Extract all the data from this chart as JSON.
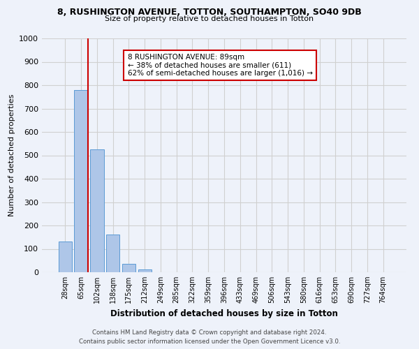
{
  "title1": "8, RUSHINGTON AVENUE, TOTTON, SOUTHAMPTON, SO40 9DB",
  "title2": "Size of property relative to detached houses in Totton",
  "xlabel": "Distribution of detached houses by size in Totton",
  "ylabel": "Number of detached properties",
  "footer1": "Contains HM Land Registry data © Crown copyright and database right 2024.",
  "footer2": "Contains public sector information licensed under the Open Government Licence v3.0.",
  "bar_labels": [
    "28sqm",
    "65sqm",
    "102sqm",
    "138sqm",
    "175sqm",
    "212sqm",
    "249sqm",
    "285sqm",
    "322sqm",
    "359sqm",
    "396sqm",
    "433sqm",
    "469sqm",
    "506sqm",
    "543sqm",
    "580sqm",
    "616sqm",
    "653sqm",
    "690sqm",
    "727sqm",
    "764sqm"
  ],
  "bar_values": [
    130,
    780,
    525,
    160,
    35,
    12,
    0,
    0,
    0,
    0,
    0,
    0,
    0,
    0,
    0,
    0,
    0,
    0,
    0,
    0,
    0
  ],
  "bar_color": "#aec6e8",
  "bar_edge_color": "#5b9bd5",
  "grid_color": "#d0d0d0",
  "background_color": "#eef2fa",
  "vline_color": "#cc0000",
  "vline_pos": 1.425,
  "annotation_text": "8 RUSHINGTON AVENUE: 89sqm\n← 38% of detached houses are smaller (611)\n62% of semi-detached houses are larger (1,016) →",
  "annotation_box_color": "#ffffff",
  "annotation_box_edge": "#cc0000",
  "ylim": [
    0,
    1000
  ],
  "yticks": [
    0,
    100,
    200,
    300,
    400,
    500,
    600,
    700,
    800,
    900,
    1000
  ]
}
